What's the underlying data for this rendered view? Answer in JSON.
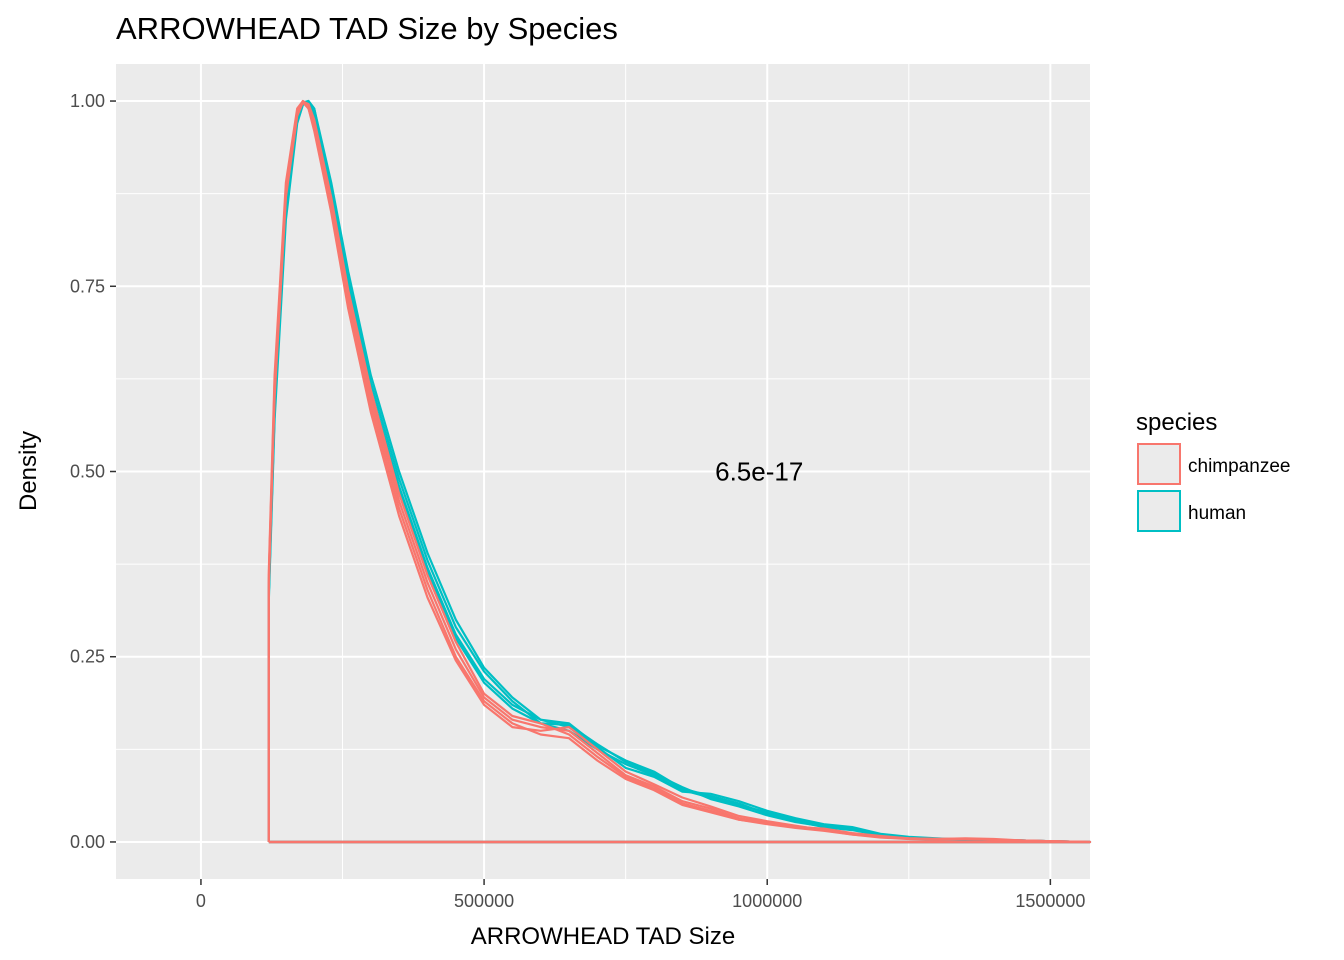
{
  "chart_data": {
    "type": "line",
    "title": "ARROWHEAD TAD Size by Species",
    "xlabel": "ARROWHEAD TAD Size",
    "ylabel": "Density",
    "xlim": [
      -150000,
      1570000
    ],
    "ylim": [
      -0.05,
      1.05
    ],
    "x_ticks": [
      0,
      500000,
      1000000,
      1500000
    ],
    "x_tick_labels": [
      "0",
      "500000",
      "1000000",
      "1500000"
    ],
    "y_ticks": [
      0,
      0.25,
      0.5,
      0.75,
      1.0
    ],
    "y_tick_labels": [
      "0.00",
      "0.25",
      "0.50",
      "0.75",
      "1.00"
    ],
    "grid": true,
    "legend": {
      "title": "species",
      "placement": "right",
      "entries": [
        {
          "label": "chimpanzee",
          "color": "#F8766D"
        },
        {
          "label": "human",
          "color": "#00BFC4"
        }
      ]
    },
    "annotations": [
      {
        "text": "6.5e-17",
        "x": 1000000,
        "y": 0.5
      }
    ],
    "x": [
      120000,
      130000,
      150000,
      170000,
      180000,
      190000,
      200000,
      230000,
      260000,
      300000,
      350000,
      400000,
      450000,
      500000,
      550000,
      600000,
      650000,
      700000,
      750000,
      800000,
      850000,
      900000,
      950000,
      1000000,
      1050000,
      1100000,
      1150000,
      1200000,
      1250000,
      1300000,
      1350000,
      1400000,
      1450000,
      1500000,
      1570000
    ],
    "series": [
      {
        "species": "chimpanzee",
        "values": [
          0.36,
          0.62,
          0.88,
          0.985,
          1.0,
          0.995,
          0.97,
          0.86,
          0.73,
          0.59,
          0.45,
          0.34,
          0.25,
          0.19,
          0.16,
          0.145,
          0.14,
          0.11,
          0.085,
          0.07,
          0.05,
          0.04,
          0.03,
          0.025,
          0.02,
          0.018,
          0.012,
          0.008,
          0.005,
          0.004,
          0.004,
          0.003,
          0.002,
          0.001,
          0.0
        ]
      },
      {
        "species": "chimpanzee",
        "values": [
          0.35,
          0.6,
          0.87,
          0.98,
          0.998,
          0.99,
          0.965,
          0.86,
          0.74,
          0.6,
          0.46,
          0.35,
          0.26,
          0.195,
          0.165,
          0.155,
          0.15,
          0.12,
          0.09,
          0.075,
          0.055,
          0.045,
          0.032,
          0.026,
          0.021,
          0.017,
          0.011,
          0.007,
          0.005,
          0.004,
          0.005,
          0.004,
          0.002,
          0.001,
          0.0
        ]
      },
      {
        "species": "chimpanzee",
        "values": [
          0.37,
          0.63,
          0.89,
          0.99,
          1.0,
          0.99,
          0.96,
          0.85,
          0.72,
          0.58,
          0.44,
          0.33,
          0.245,
          0.185,
          0.155,
          0.15,
          0.155,
          0.125,
          0.095,
          0.078,
          0.06,
          0.048,
          0.035,
          0.028,
          0.022,
          0.016,
          0.01,
          0.006,
          0.004,
          0.003,
          0.004,
          0.003,
          0.002,
          0.001,
          0.0
        ]
      },
      {
        "species": "chimpanzee",
        "values": [
          0.36,
          0.61,
          0.875,
          0.982,
          0.999,
          0.996,
          0.975,
          0.87,
          0.745,
          0.61,
          0.47,
          0.36,
          0.27,
          0.2,
          0.17,
          0.16,
          0.145,
          0.115,
          0.088,
          0.072,
          0.052,
          0.042,
          0.03,
          0.024,
          0.019,
          0.015,
          0.01,
          0.007,
          0.005,
          0.004,
          0.004,
          0.003,
          0.002,
          0.001,
          0.0
        ]
      },
      {
        "species": "human",
        "values": [
          0.34,
          0.58,
          0.85,
          0.975,
          0.998,
          1.0,
          0.99,
          0.88,
          0.76,
          0.62,
          0.49,
          0.38,
          0.29,
          0.23,
          0.19,
          0.16,
          0.15,
          0.125,
          0.105,
          0.09,
          0.07,
          0.06,
          0.05,
          0.04,
          0.03,
          0.022,
          0.018,
          0.01,
          0.006,
          0.004,
          0.003,
          0.002,
          0.002,
          0.001,
          0.0
        ]
      },
      {
        "species": "human",
        "values": [
          0.35,
          0.59,
          0.86,
          0.978,
          0.999,
          0.998,
          0.985,
          0.875,
          0.75,
          0.61,
          0.48,
          0.37,
          0.28,
          0.22,
          0.185,
          0.165,
          0.16,
          0.13,
          0.11,
          0.095,
          0.072,
          0.062,
          0.052,
          0.038,
          0.028,
          0.02,
          0.016,
          0.009,
          0.006,
          0.004,
          0.003,
          0.002,
          0.002,
          0.001,
          0.0
        ]
      },
      {
        "species": "human",
        "values": [
          0.33,
          0.57,
          0.84,
          0.97,
          0.995,
          1.0,
          0.99,
          0.89,
          0.77,
          0.63,
          0.5,
          0.39,
          0.3,
          0.235,
          0.195,
          0.165,
          0.155,
          0.128,
          0.1,
          0.088,
          0.068,
          0.065,
          0.055,
          0.042,
          0.032,
          0.024,
          0.02,
          0.011,
          0.007,
          0.005,
          0.003,
          0.002,
          0.002,
          0.001,
          0.0
        ]
      },
      {
        "species": "human",
        "values": [
          0.34,
          0.58,
          0.855,
          0.974,
          0.997,
          0.999,
          0.98,
          0.87,
          0.745,
          0.605,
          0.475,
          0.365,
          0.275,
          0.215,
          0.18,
          0.16,
          0.158,
          0.132,
          0.108,
          0.092,
          0.074,
          0.058,
          0.048,
          0.036,
          0.027,
          0.021,
          0.017,
          0.01,
          0.006,
          0.004,
          0.003,
          0.002,
          0.002,
          0.001,
          0.0
        ]
      }
    ]
  }
}
